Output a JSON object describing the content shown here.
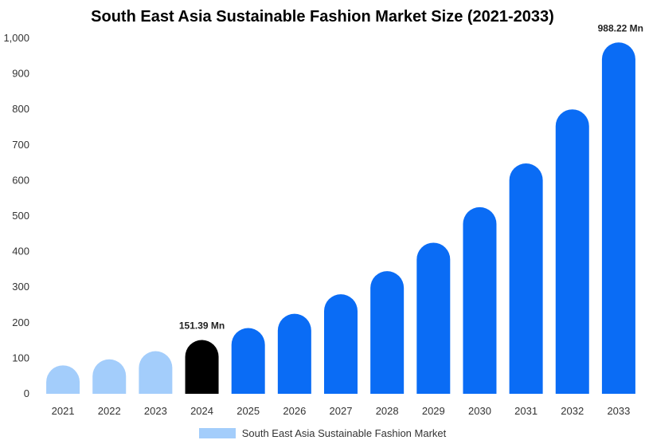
{
  "chart_data": {
    "type": "bar",
    "title": "South East Asia Sustainable Fashion Market Size (2021-2033)",
    "categories": [
      "2021",
      "2022",
      "2023",
      "2024",
      "2025",
      "2026",
      "2027",
      "2028",
      "2029",
      "2030",
      "2031",
      "2032",
      "2033"
    ],
    "series": [
      {
        "name": "South East Asia Sustainable Fashion Market",
        "values": [
          80,
          97,
          120,
          151.39,
          185,
          225,
          280,
          345,
          425,
          525,
          648,
          800,
          988.22
        ]
      }
    ],
    "ylim": [
      0,
      1000
    ],
    "yticks": [
      0,
      100,
      200,
      300,
      400,
      500,
      600,
      700,
      800,
      900,
      1000
    ],
    "ytick_labels": [
      "0",
      "100",
      "200",
      "300",
      "400",
      "500",
      "600",
      "700",
      "800",
      "900",
      "1,000"
    ],
    "data_labels": [
      {
        "category": "2024",
        "text": "151.39 Mn"
      },
      {
        "category": "2033",
        "text": "988.22 Mn"
      }
    ],
    "colors": {
      "historical": "#a3cdfb",
      "current": "#000000",
      "forecast": "#0a6cf5"
    },
    "bar_color_groups": [
      "historical",
      "historical",
      "historical",
      "current",
      "forecast",
      "forecast",
      "forecast",
      "forecast",
      "forecast",
      "forecast",
      "forecast",
      "forecast",
      "forecast"
    ],
    "grid": false,
    "legend_position": "bottom-center",
    "xlabel": "",
    "ylabel": ""
  }
}
